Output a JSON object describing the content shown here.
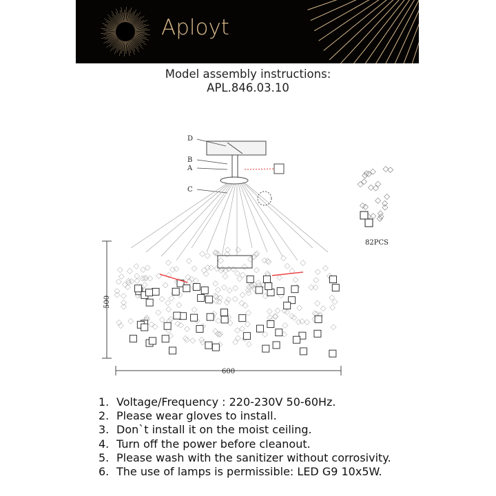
{
  "banner": {
    "brand": "Aployt",
    "colors": {
      "background": "#050403",
      "gold": "#d9b98a"
    }
  },
  "header": {
    "title": "Model assembly instructions:",
    "model": "APL.846.03.10"
  },
  "diagram": {
    "part_labels": [
      "D",
      "B",
      "A",
      "C"
    ],
    "height_label": "500",
    "width_label": "600",
    "pieces_label": "82PCS"
  },
  "instructions": [
    {
      "num": "1.",
      "text": "Voltage/Frequency : 220-230V 50-60Hz."
    },
    {
      "num": "2.",
      "text": "Please wear gloves to install."
    },
    {
      "num": "3.",
      "text": "Don`t install it on the moist ceiling."
    },
    {
      "num": "4.",
      "text": "Turn off the power before cleanout."
    },
    {
      "num": "5.",
      "text": "Please wash with the sanitizer without corrosivity."
    },
    {
      "num": "6.",
      "text": "The use of lamps is permissible: LED G9 10x5W."
    }
  ]
}
